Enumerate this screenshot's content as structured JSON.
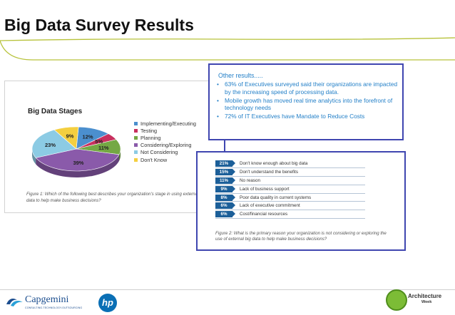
{
  "slide": {
    "title": "Big Data Survey Results"
  },
  "figure1": {
    "caption": "Figure 1: Which of the following best describes your organization's stage in using external big data to help make business decisions?"
  },
  "chart_data": {
    "type": "pie",
    "title": "Big Data Stages",
    "slices": [
      {
        "label": "Implementing/Executing",
        "value": 12,
        "display": "12%",
        "color": "#4b8fce"
      },
      {
        "label": "Testing",
        "value": 5,
        "display": "5%",
        "color": "#c8305e"
      },
      {
        "label": "Planning",
        "value": 11,
        "display": "11%",
        "color": "#74a844"
      },
      {
        "label": "Considering/Exploring",
        "value": 39,
        "display": "39%",
        "color": "#8a5aaa"
      },
      {
        "label": "Not Considering",
        "value": 23,
        "display": "23%",
        "color": "#8ccbe4"
      },
      {
        "label": "Don't Know",
        "value": 9,
        "display": "9%",
        "color": "#f4cf3f"
      }
    ],
    "legend": "right",
    "style": "3d"
  },
  "other_results": {
    "heading": "Other results.....",
    "items": [
      "63% of Executives surveyed said their organizations are impacted by the increasing speed of processing data.",
      "Mobile growth has moved real time analytics into the forefront of technology needs",
      "72% of IT Executives have Mandate to Reduce Costs"
    ],
    "bullet": "•"
  },
  "figure2": {
    "rows": [
      {
        "percent": "21%",
        "text": "Don't know enough about big data"
      },
      {
        "percent": "15%",
        "text": "Don't understand the benefits"
      },
      {
        "percent": "11%",
        "text": "No reason"
      },
      {
        "percent": "9%",
        "text": "Lack of business support"
      },
      {
        "percent": "8%",
        "text": "Poor data quality in current systems"
      },
      {
        "percent": "6%",
        "text": "Lack of executive commitment"
      },
      {
        "percent": "6%",
        "text": "Cost/financial resources"
      }
    ],
    "caption": "Figure 2: What is the primary reason your organization is not considering or exploring the use of external big data to help make business decisions?"
  },
  "footer": {
    "capgemini_name": "Capgemini",
    "capgemini_tagline": "CONSULTING.TECHNOLOGY.OUTSOURCING",
    "hp_logo": "hp",
    "architecture_word1": "Architecture",
    "architecture_word2": "Week"
  },
  "colors": {
    "accent_blue": "#3f46b0",
    "text_blue": "#2480c8",
    "badge_blue": "#1c5f99",
    "title_curve": "#b7c23a"
  }
}
